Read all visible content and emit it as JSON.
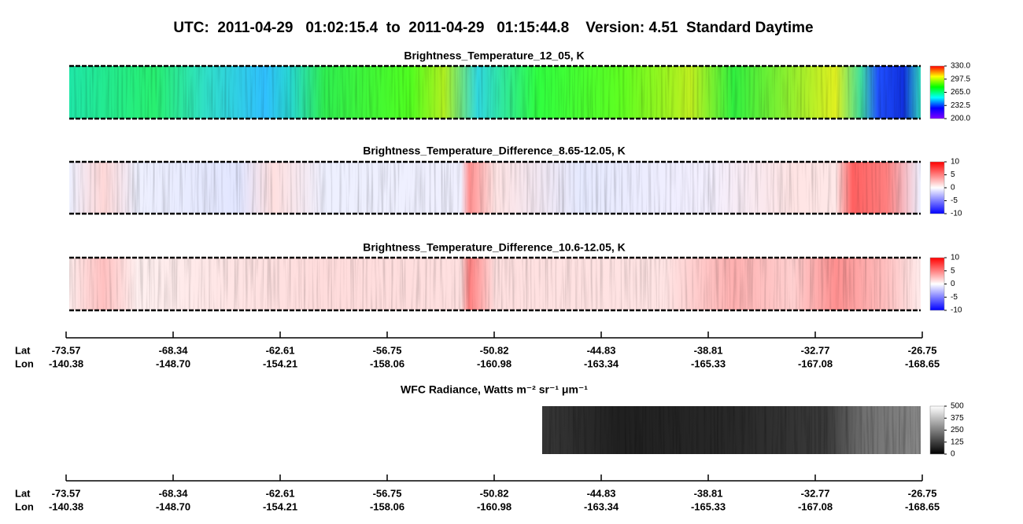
{
  "title": "UTC:  2011-04-29   01:02:15.4  to  2011-04-29   01:15:44.8    Version: 4.51  Standard Daytime",
  "chart_data": [
    {
      "type": "heatmap",
      "title": "Brightness_Temperature_12_05, K",
      "colorbar": {
        "lim": [
          200,
          330
        ],
        "ticks": [
          {
            "value": 330,
            "label": "330.0"
          },
          297.5,
          {
            "value": 265,
            "label": "265.0"
          },
          232.5,
          {
            "value": 200,
            "label": "200.0"
          }
        ],
        "colors": [
          "#8000ff",
          "#0000ff",
          "#00ffff",
          "#00ff00",
          "#ffff00",
          "#ff0000"
        ]
      }
    },
    {
      "type": "heatmap",
      "title": "Brightness_Temperature_Difference_8.65-12.05, K",
      "colorbar": {
        "lim": [
          -10,
          10
        ],
        "ticks": [
          10,
          5,
          0,
          -5,
          -10
        ],
        "colors": [
          "#0000ff",
          "#ffffff",
          "#ff0000"
        ]
      }
    },
    {
      "type": "heatmap",
      "title": "Brightness_Temperature_Difference_10.6-12.05, K",
      "colorbar": {
        "lim": [
          -10,
          10
        ],
        "ticks": [
          10,
          5,
          0,
          -5,
          -10
        ],
        "colors": [
          "#0000ff",
          "#ffffff",
          "#ff0000"
        ]
      }
    },
    {
      "type": "heatmap",
      "title": "WFC Radiance, Watts m⁻² sr⁻¹ μm⁻¹",
      "colorbar": {
        "lim": [
          0,
          500
        ],
        "ticks": [
          500,
          375,
          250,
          125,
          0
        ],
        "colors": [
          "#000000",
          "#ffffff"
        ]
      }
    }
  ],
  "track_axes": [
    {
      "rows": [
        {
          "label": "Lat",
          "values": [
            "-73.57",
            "-68.34",
            "-62.61",
            "-56.75",
            "-50.82",
            "-44.83",
            "-38.81",
            "-32.77",
            "-26.75"
          ]
        },
        {
          "label": "Lon",
          "values": [
            "-140.38",
            "-148.70",
            "-154.21",
            "-158.06",
            "-160.98",
            "-163.34",
            "-165.33",
            "-167.08",
            "-168.65"
          ]
        }
      ]
    },
    {
      "rows": [
        {
          "label": "Lat",
          "values": [
            "-73.57",
            "-68.34",
            "-62.61",
            "-56.75",
            "-50.82",
            "-44.83",
            "-38.81",
            "-32.77",
            "-26.75"
          ]
        },
        {
          "label": "Lon",
          "values": [
            "-140.38",
            "-148.70",
            "-154.21",
            "-158.06",
            "-160.98",
            "-163.34",
            "-165.33",
            "-167.08",
            "-168.65"
          ]
        }
      ]
    }
  ]
}
